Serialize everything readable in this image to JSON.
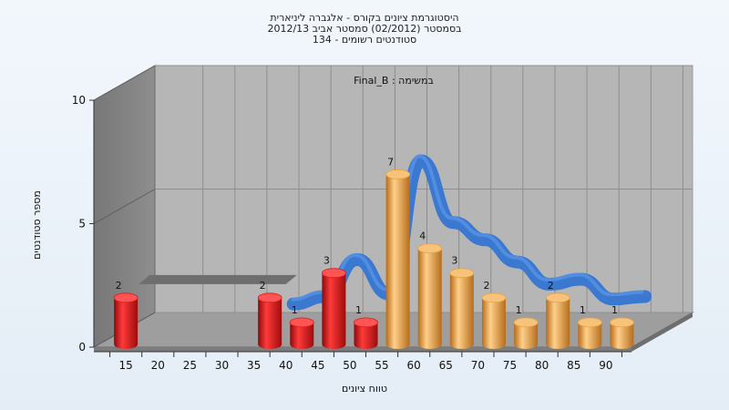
{
  "chart_data": {
    "type": "bar",
    "title": [
      "היסטוגרמת ציונים בקורס - אלגברה ליניארית",
      "בסמסטר  (02/2012)  סמסטר אביב 2012/13",
      "134 - סטודנטים רשומים"
    ],
    "annotation": "Final_B : במשימה",
    "xlabel": "טווח ציונים",
    "ylabel": "מספר סטודנטים",
    "x_ticks": [
      "15",
      "20",
      "25",
      "30",
      "35",
      "40",
      "45",
      "50",
      "55",
      "60",
      "65",
      "70",
      "75",
      "80",
      "85",
      "90"
    ],
    "y_ticks": [
      "0",
      "5",
      "10"
    ],
    "ylim": [
      0,
      10
    ],
    "bars": [
      {
        "x": 15,
        "value": 2,
        "label": "2",
        "color": "#e01818"
      },
      {
        "x": 37.5,
        "value": 2,
        "label": "2",
        "color": "#e01818"
      },
      {
        "x": 42.5,
        "value": 1,
        "label": "1",
        "color": "#e01818"
      },
      {
        "x": 47.5,
        "value": 3,
        "label": "3",
        "color": "#e01818"
      },
      {
        "x": 52.5,
        "value": 1,
        "label": "1",
        "color": "#e01818"
      },
      {
        "x": 57.5,
        "value": 7,
        "label": "7",
        "color": "#e8a23c"
      },
      {
        "x": 62.5,
        "value": 4,
        "label": "4",
        "color": "#e8a23c"
      },
      {
        "x": 67.5,
        "value": 3,
        "label": "3",
        "color": "#e8a23c"
      },
      {
        "x": 72.5,
        "value": 2,
        "label": "2",
        "color": "#e8a23c"
      },
      {
        "x": 77.5,
        "value": 1,
        "label": "1",
        "color": "#e8a23c"
      },
      {
        "x": 82.5,
        "value": 2,
        "label": "2",
        "color": "#e8a23c"
      },
      {
        "x": 87.5,
        "value": 1,
        "label": "1",
        "color": "#e8a23c"
      },
      {
        "x": 92.5,
        "value": 1,
        "label": "1",
        "color": "#e8a23c"
      }
    ],
    "curve": {
      "color": "#3b78d0",
      "points": [
        [
          40,
          1.6
        ],
        [
          45,
          1.9
        ],
        [
          50,
          3.4
        ],
        [
          55,
          2.0
        ],
        [
          60,
          7.4
        ],
        [
          65,
          4.9
        ],
        [
          70,
          4.2
        ],
        [
          75,
          3.3
        ],
        [
          80,
          2.4
        ],
        [
          85,
          2.6
        ],
        [
          90,
          1.8
        ],
        [
          95,
          1.9
        ]
      ]
    },
    "flat_segment": {
      "color": "#6e6e6e",
      "from": 17,
      "to": 40,
      "value": 2.7
    },
    "grid": true
  }
}
